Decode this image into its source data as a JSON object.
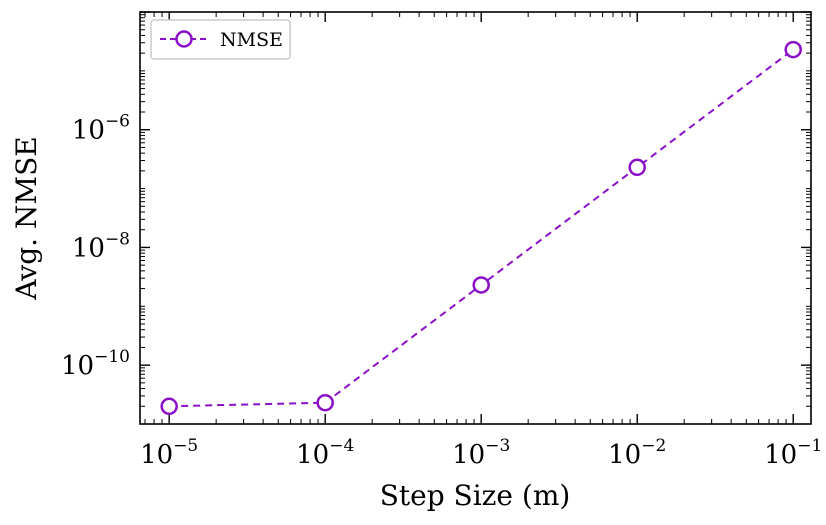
{
  "chart_data": {
    "type": "line",
    "title": "",
    "xlabel": "Step Size (m)",
    "ylabel": "Avg. NMSE",
    "xscale": "log",
    "yscale": "log",
    "xlim": [
      6.5e-06,
      0.13
    ],
    "ylim": [
      1e-11,
      0.0001
    ],
    "x_ticks": [
      {
        "value": 1e-05,
        "base": "10",
        "exp": "−5"
      },
      {
        "value": 0.0001,
        "base": "10",
        "exp": "−4"
      },
      {
        "value": 0.001,
        "base": "10",
        "exp": "−3"
      },
      {
        "value": 0.01,
        "base": "10",
        "exp": "−2"
      },
      {
        "value": 0.1,
        "base": "10",
        "exp": "−1"
      }
    ],
    "y_ticks": [
      {
        "value": 1e-10,
        "base": "10",
        "exp": "−10"
      },
      {
        "value": 1e-08,
        "base": "10",
        "exp": "−8"
      },
      {
        "value": 1e-06,
        "base": "10",
        "exp": "−6"
      }
    ],
    "series": [
      {
        "name": "NMSE",
        "color": "#8B10C8",
        "line_style": "dashed",
        "marker": "open-circle",
        "x": [
          1e-05,
          0.0001,
          0.001,
          0.01,
          0.1
        ],
        "y": [
          2e-11,
          2.3e-11,
          2.3e-09,
          2.3e-07,
          2.3e-05
        ]
      }
    ],
    "legend": {
      "position": "top-left",
      "entries": [
        "NMSE"
      ]
    },
    "grid": false
  }
}
